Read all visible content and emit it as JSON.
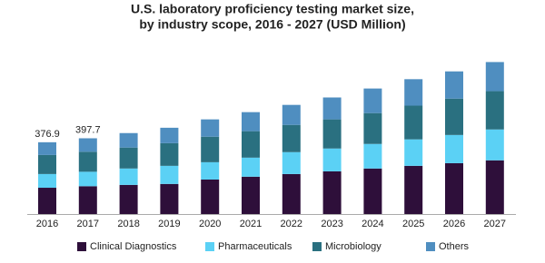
{
  "chart_data": {
    "type": "stacked-bar",
    "title": "U.S. laboratory proficiency testing market size,",
    "subtitle": "by industry scope, 2016 - 2027 (USD Million)",
    "categories": [
      "2016",
      "2017",
      "2018",
      "2019",
      "2020",
      "2021",
      "2022",
      "2023",
      "2024",
      "2025",
      "2026",
      "2027"
    ],
    "series": [
      {
        "name": "Clinical Diagnostics",
        "color": "#2e0f3a",
        "values": [
          138,
          146,
          153,
          158,
          181,
          196,
          210,
          224,
          239,
          253,
          267,
          282
        ]
      },
      {
        "name": "Pharmaceuticals",
        "color": "#5bd1f5",
        "values": [
          72,
          76,
          86,
          95,
          91,
          100,
          115,
          120,
          129,
          139,
          148,
          162
        ]
      },
      {
        "name": "Microbiology",
        "color": "#2a7080",
        "values": [
          100,
          105,
          110,
          119,
          134,
          139,
          143,
          153,
          162,
          177,
          191,
          201
        ]
      },
      {
        "name": "Others",
        "color": "#4f8ec0",
        "values": [
          66.9,
          70.7,
          76,
          81,
          91,
          100,
          105,
          115,
          129,
          139,
          143,
          153
        ]
      }
    ],
    "total_labels": [
      376.9,
      397.7
    ]
  }
}
